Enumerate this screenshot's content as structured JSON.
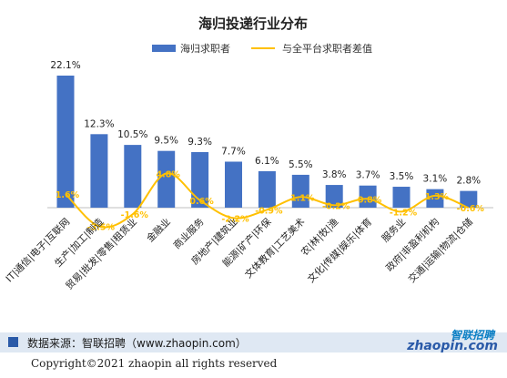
{
  "chart_data": {
    "type": "bar",
    "title": "海归投递行业分布",
    "categories": [
      "IT|通信|电子|互联网",
      "生产|加工|制造",
      "贸易|批发|零售|租赁业",
      "金融业",
      "商业服务",
      "房地产|建筑业",
      "能源|矿产|环保",
      "文体教育|工艺美术",
      "农|林|牧|渔",
      "文化|传媒|娱乐|体育",
      "服务业",
      "政府|非盈利机构",
      "交通|运输|物流|仓储"
    ],
    "series": [
      {
        "name": "海归求职者",
        "type": "bar",
        "color": "#4472c4",
        "values": [
          22.1,
          12.3,
          10.5,
          9.5,
          9.3,
          7.7,
          6.1,
          5.5,
          3.8,
          3.7,
          3.5,
          3.1,
          2.8
        ],
        "labels": [
          "22.1%",
          "12.3%",
          "10.5%",
          "9.5%",
          "9.3%",
          "7.7%",
          "6.1%",
          "5.5%",
          "3.8%",
          "3.7%",
          "3.5%",
          "3.1%",
          "2.8%"
        ]
      },
      {
        "name": "与全平台求职者差值",
        "type": "line",
        "color": "#ffc000",
        "values": [
          1.6,
          -3.5,
          -1.6,
          4.8,
          0.6,
          -2.2,
          -0.9,
          1.1,
          -0.2,
          0.8,
          -1.2,
          1.3,
          -0.6
        ],
        "labels": [
          "1.6%",
          "-3.5%",
          "-1.6%",
          "4.8%",
          "0.6%",
          "-2.2%",
          "-0.9%",
          "1.1%",
          "-0.2%",
          "0.8%",
          "-1.2%",
          "1.3%",
          "-0.6%"
        ]
      }
    ],
    "ylim": [
      -5,
      24
    ],
    "grid": false,
    "legend": "top"
  },
  "footer": {
    "source": "数据来源：智联招聘（www.zhaopin.com）",
    "logo_cn": "智联招聘",
    "logo_en": "zhaopin.com",
    "copyright": "Copyright©2021 zhaopin all rights reserved"
  }
}
